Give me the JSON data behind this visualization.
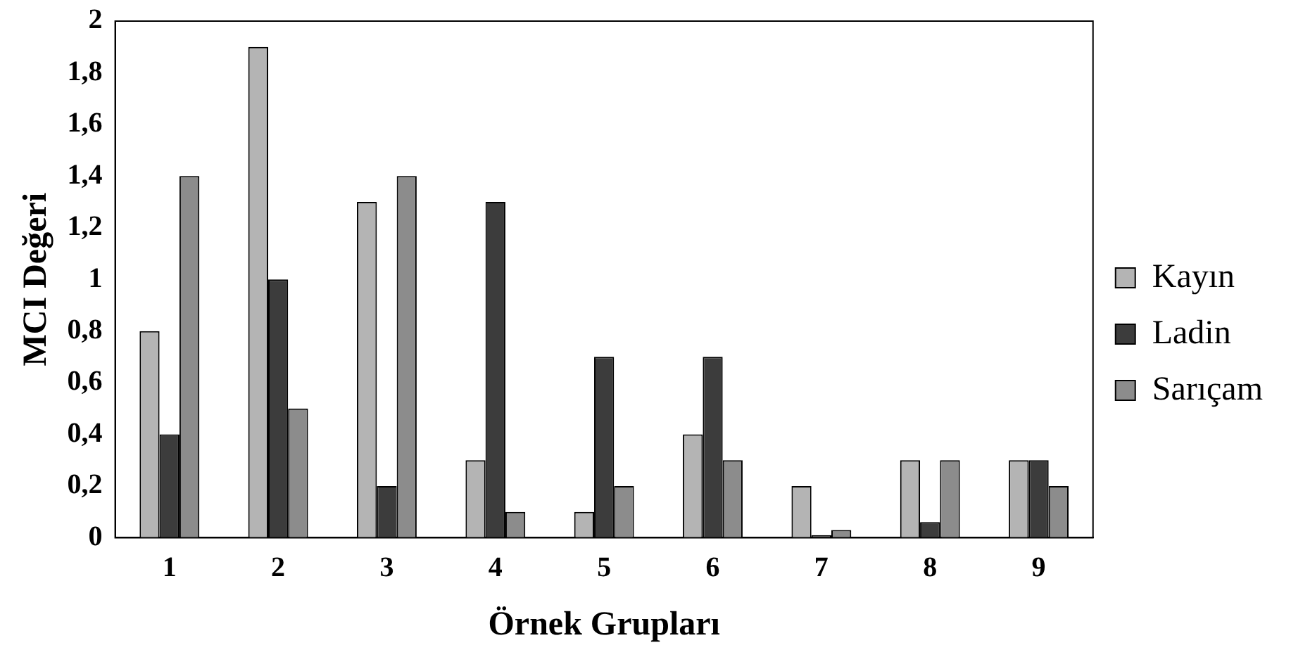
{
  "chart_data": {
    "type": "bar",
    "xlabel": "Örnek Grupları",
    "ylabel": "MCI Değeri",
    "categories": [
      "1",
      "2",
      "3",
      "4",
      "5",
      "6",
      "7",
      "8",
      "9"
    ],
    "series": [
      {
        "name": "Kayın",
        "color": "#b4b4b4",
        "values": [
          0.8,
          1.9,
          1.3,
          0.3,
          0.1,
          0.4,
          0.2,
          0.3,
          0.3
        ]
      },
      {
        "name": "Ladin",
        "color": "#3c3c3c",
        "values": [
          0.4,
          1.0,
          0.2,
          1.3,
          0.7,
          0.7,
          0.01,
          0.06,
          0.3
        ]
      },
      {
        "name": "Sarıçam",
        "color": "#8c8c8c",
        "values": [
          1.4,
          0.5,
          1.4,
          0.1,
          0.2,
          0.3,
          0.03,
          0.3,
          0.2
        ]
      }
    ],
    "ylim": [
      0,
      2
    ],
    "yticks": [
      0,
      {
        "value": 0.2,
        "label": "0,2"
      },
      {
        "value": 0.4,
        "label": "0,4"
      },
      {
        "value": 0.6,
        "label": "0,6"
      },
      {
        "value": 0.8,
        "label": "0,8"
      },
      1,
      {
        "value": 1.2,
        "label": "1,2"
      },
      {
        "value": 1.4,
        "label": "1,4"
      },
      {
        "value": 1.6,
        "label": "1,6"
      },
      {
        "value": 1.8,
        "label": "1,8"
      },
      2
    ],
    "grid": false,
    "legend": "right"
  }
}
